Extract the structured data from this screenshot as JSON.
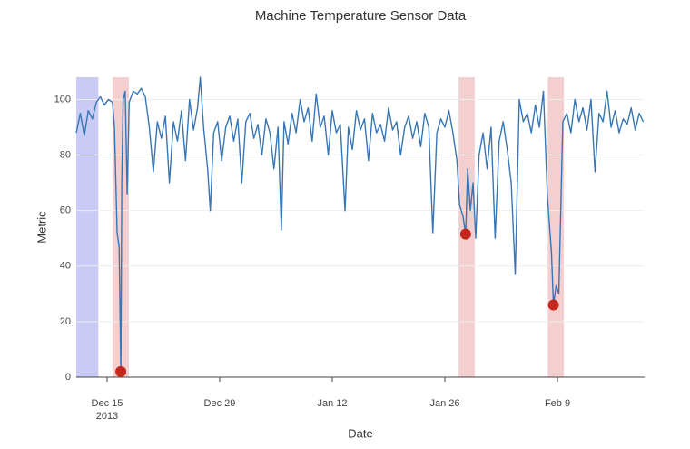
{
  "chart_data": {
    "type": "line",
    "title": "Machine Temperature Sensor Data",
    "x_label": "Date",
    "y_label": "Metric",
    "color": "#3676b5",
    "xlim": [
      "2013-12-11T04:00",
      "2014-02-19T20:00"
    ],
    "xticks": [
      {
        "value": "2013-12-15T00:00",
        "label": "Dec 15\n2013"
      },
      {
        "value": "2013-12-29T00:00",
        "label": "Dec 29"
      },
      {
        "value": "2014-01-12T00:00",
        "label": "Jan 12"
      },
      {
        "value": "2014-01-26T00:00",
        "label": "Jan 26"
      },
      {
        "value": "2014-02-09T00:00",
        "label": "Feb 9"
      }
    ],
    "ylim": [
      0,
      108
    ],
    "yticks": [
      0,
      20,
      40,
      60,
      80,
      100
    ],
    "grid": true,
    "regions": [
      {
        "start": "2013-12-11T04:00",
        "end": "2013-12-13T22:00",
        "color": "#c9cbf4"
      },
      {
        "start": "2013-12-15T16:00",
        "end": "2013-12-17T17:00",
        "color": "#f3cfd0"
      },
      {
        "start": "2014-01-27T17:00",
        "end": "2014-01-29T17:00",
        "color": "#f3cfd0"
      },
      {
        "start": "2014-02-07T19:00",
        "end": "2014-02-09T19:00",
        "color": "#f3cfd0"
      }
    ],
    "anomalies": {
      "color": "#c4281c",
      "x": [
        "2013-12-16T17:00",
        "2014-01-28T14:00",
        "2014-02-08T12:00"
      ],
      "values": [
        2,
        51.5,
        26
      ]
    },
    "x": [
      "2013-12-11T04:00",
      "2013-12-11T16:00",
      "2013-12-12T04:00",
      "2013-12-12T16:00",
      "2013-12-13T04:00",
      "2013-12-13T16:00",
      "2013-12-14T04:00",
      "2013-12-14T16:00",
      "2013-12-15T04:00",
      "2013-12-15T16:00",
      "2013-12-15T22:00",
      "2013-12-16T06:00",
      "2013-12-16T12:00",
      "2013-12-16T17:00",
      "2013-12-16T20:00",
      "2013-12-17T00:00",
      "2013-12-17T06:00",
      "2013-12-17T12:00",
      "2013-12-17T18:00",
      "2013-12-18T06:00",
      "2013-12-18T18:00",
      "2013-12-19T06:00",
      "2013-12-19T18:00",
      "2013-12-20T06:00",
      "2013-12-20T18:00",
      "2013-12-21T06:00",
      "2013-12-21T18:00",
      "2013-12-22T06:00",
      "2013-12-22T18:00",
      "2013-12-23T06:00",
      "2013-12-23T18:00",
      "2013-12-24T06:00",
      "2013-12-24T18:00",
      "2013-12-25T06:00",
      "2013-12-25T18:00",
      "2013-12-26T06:00",
      "2013-12-26T14:00",
      "2013-12-27T00:00",
      "2013-12-27T12:00",
      "2013-12-27T20:00",
      "2013-12-28T06:00",
      "2013-12-28T18:00",
      "2013-12-29T06:00",
      "2013-12-29T18:00",
      "2013-12-30T06:00",
      "2013-12-30T18:00",
      "2013-12-31T06:00",
      "2013-12-31T18:00",
      "2014-01-01T06:00",
      "2014-01-01T18:00",
      "2014-01-02T06:00",
      "2014-01-02T18:00",
      "2014-01-03T06:00",
      "2014-01-03T18:00",
      "2014-01-04T06:00",
      "2014-01-04T18:00",
      "2014-01-05T06:00",
      "2014-01-05T16:00",
      "2014-01-06T00:00",
      "2014-01-06T12:00",
      "2014-01-07T00:00",
      "2014-01-07T12:00",
      "2014-01-08T00:00",
      "2014-01-08T12:00",
      "2014-01-09T00:00",
      "2014-01-09T12:00",
      "2014-01-10T00:00",
      "2014-01-10T12:00",
      "2014-01-11T00:00",
      "2014-01-11T12:00",
      "2014-01-12T00:00",
      "2014-01-12T12:00",
      "2014-01-13T00:00",
      "2014-01-13T14:00",
      "2014-01-14T00:00",
      "2014-01-14T12:00",
      "2014-01-15T00:00",
      "2014-01-15T12:00",
      "2014-01-16T00:00",
      "2014-01-16T12:00",
      "2014-01-17T00:00",
      "2014-01-17T12:00",
      "2014-01-18T00:00",
      "2014-01-18T12:00",
      "2014-01-19T00:00",
      "2014-01-19T12:00",
      "2014-01-20T00:00",
      "2014-01-20T12:00",
      "2014-01-21T00:00",
      "2014-01-21T12:00",
      "2014-01-22T00:00",
      "2014-01-22T12:00",
      "2014-01-23T00:00",
      "2014-01-23T12:00",
      "2014-01-24T00:00",
      "2014-01-24T12:00",
      "2014-01-25T00:00",
      "2014-01-25T12:00",
      "2014-01-26T00:00",
      "2014-01-26T12:00",
      "2014-01-27T00:00",
      "2014-01-27T12:00",
      "2014-01-27T20:00",
      "2014-01-28T06:00",
      "2014-01-28T14:00",
      "2014-01-28T20:00",
      "2014-01-29T04:00",
      "2014-01-29T12:00",
      "2014-01-29T20:00",
      "2014-01-30T06:00",
      "2014-01-30T18:00",
      "2014-01-31T06:00",
      "2014-01-31T18:00",
      "2014-02-01T06:00",
      "2014-02-01T18:00",
      "2014-02-02T06:00",
      "2014-02-02T18:00",
      "2014-02-03T06:00",
      "2014-02-03T18:00",
      "2014-02-04T06:00",
      "2014-02-04T18:00",
      "2014-02-05T06:00",
      "2014-02-05T18:00",
      "2014-02-06T06:00",
      "2014-02-06T18:00",
      "2014-02-07T06:00",
      "2014-02-07T18:00",
      "2014-02-08T06:00",
      "2014-02-08T12:00",
      "2014-02-08T20:00",
      "2014-02-09T04:00",
      "2014-02-09T16:00",
      "2014-02-10T04:00",
      "2014-02-10T16:00",
      "2014-02-11T04:00",
      "2014-02-11T16:00",
      "2014-02-12T04:00",
      "2014-02-12T16:00",
      "2014-02-13T04:00",
      "2014-02-13T16:00",
      "2014-02-14T04:00",
      "2014-02-14T16:00",
      "2014-02-15T04:00",
      "2014-02-15T16:00",
      "2014-02-16T04:00",
      "2014-02-16T16:00",
      "2014-02-17T04:00",
      "2014-02-17T16:00",
      "2014-02-18T04:00",
      "2014-02-18T16:00",
      "2014-02-19T04:00",
      "2014-02-19T16:00"
    ],
    "values": [
      88,
      95,
      87,
      96,
      93,
      99,
      101,
      98,
      100,
      99,
      90,
      52,
      47,
      2,
      72,
      100,
      103,
      66,
      99,
      103,
      102,
      104,
      101,
      90,
      74,
      92,
      86,
      94,
      70,
      92,
      85,
      96,
      78,
      100,
      89,
      97,
      108,
      90,
      75,
      60,
      88,
      92,
      78,
      90,
      94,
      85,
      93,
      70,
      92,
      95,
      86,
      91,
      80,
      93,
      88,
      75,
      90,
      53,
      92,
      84,
      95,
      88,
      100,
      92,
      97,
      85,
      102,
      90,
      94,
      80,
      96,
      88,
      91,
      60,
      90,
      82,
      96,
      89,
      93,
      78,
      95,
      88,
      91,
      85,
      97,
      89,
      92,
      80,
      90,
      94,
      86,
      92,
      83,
      95,
      90,
      52,
      88,
      93,
      90,
      96,
      88,
      78,
      62,
      58,
      51.5,
      75,
      60,
      70,
      50,
      80,
      88,
      75,
      90,
      50,
      85,
      92,
      82,
      70,
      37,
      100,
      92,
      95,
      88,
      98,
      90,
      103,
      65,
      45,
      26,
      33,
      30,
      92,
      95,
      88,
      100,
      92,
      97,
      89,
      100,
      74,
      95,
      92,
      103,
      90,
      96,
      88,
      93,
      91,
      97,
      89,
      95,
      92
    ]
  }
}
